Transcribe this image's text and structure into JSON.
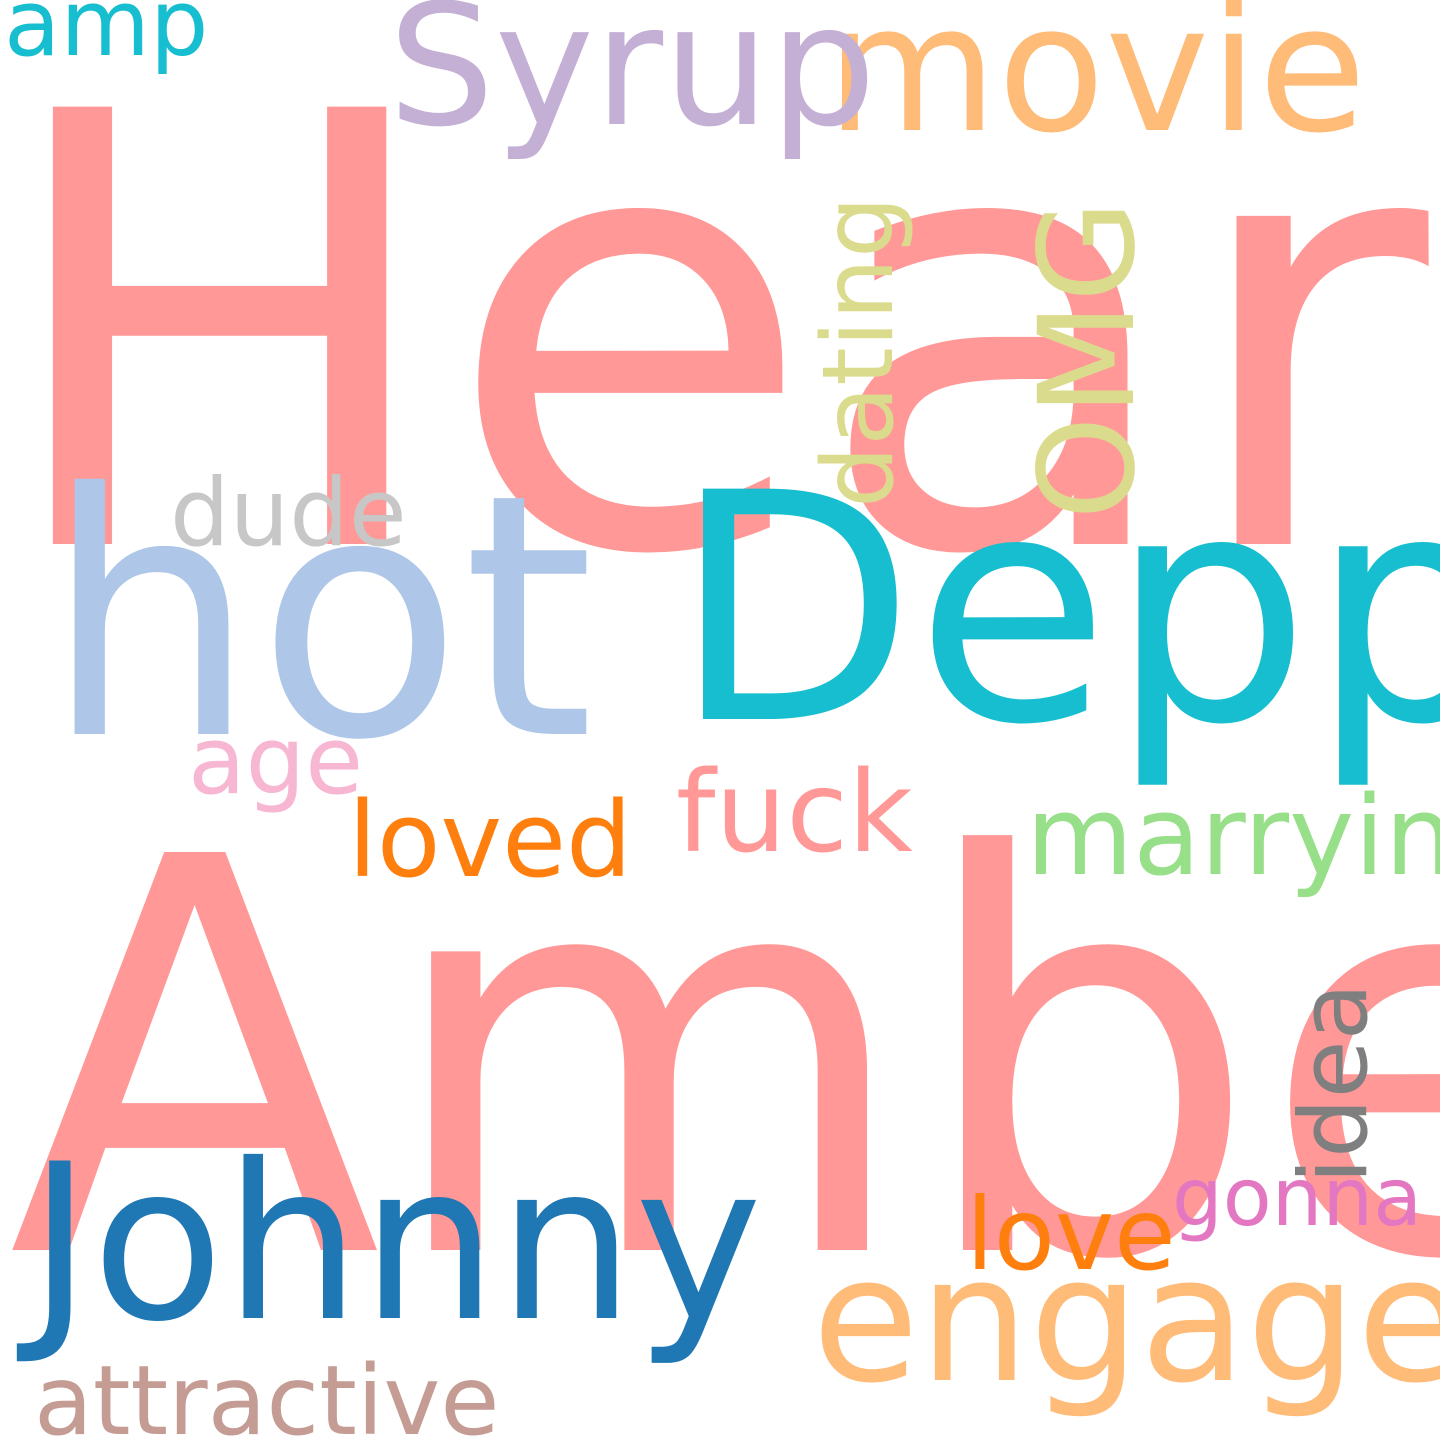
{
  "words": [
    {
      "id": "heard",
      "text": "Heard",
      "color": "#ff9896",
      "orientation": "horizontal"
    },
    {
      "id": "amber",
      "text": "Amber",
      "color": "#ff9896",
      "orientation": "horizontal"
    },
    {
      "id": "depp",
      "text": "Depp",
      "color": "#17becf",
      "orientation": "horizontal"
    },
    {
      "id": "hot",
      "text": "hot",
      "color": "#aec7e8",
      "orientation": "horizontal"
    },
    {
      "id": "johnny",
      "text": "Johnny",
      "color": "#1f77b4",
      "orientation": "horizontal"
    },
    {
      "id": "engaged",
      "text": "engaged",
      "color": "#ffbb78",
      "orientation": "horizontal"
    },
    {
      "id": "movie",
      "text": "movie",
      "color": "#ffbb78",
      "orientation": "horizontal"
    },
    {
      "id": "syrup",
      "text": "Syrup",
      "color": "#c5b0d5",
      "orientation": "horizontal"
    },
    {
      "id": "omg",
      "text": "OMG",
      "color": "#dbdb8d",
      "orientation": "vertical"
    },
    {
      "id": "dating",
      "text": "dating",
      "color": "#dbdb8d",
      "orientation": "vertical"
    },
    {
      "id": "dude",
      "text": "dude",
      "color": "#c7c7c7",
      "orientation": "horizontal"
    },
    {
      "id": "age",
      "text": "age",
      "color": "#f7b6d2",
      "orientation": "horizontal"
    },
    {
      "id": "fuck",
      "text": "fuck",
      "color": "#ff9896",
      "orientation": "horizontal"
    },
    {
      "id": "marrying",
      "text": "marrying",
      "color": "#98df8a",
      "orientation": "horizontal"
    },
    {
      "id": "loved",
      "text": "loved",
      "color": "#ff7f0e",
      "orientation": "horizontal"
    },
    {
      "id": "idea",
      "text": "idea",
      "color": "#7f7f7f",
      "orientation": "vertical"
    },
    {
      "id": "gonna",
      "text": "gonna",
      "color": "#e377c2",
      "orientation": "horizontal"
    },
    {
      "id": "love",
      "text": "love",
      "color": "#ff7f0e",
      "orientation": "horizontal"
    },
    {
      "id": "attractive",
      "text": "attractive",
      "color": "#c49c94",
      "orientation": "horizontal"
    },
    {
      "id": "amp",
      "text": "amp",
      "color": "#17becf",
      "orientation": "horizontal"
    }
  ],
  "background_color": "#ffffff"
}
